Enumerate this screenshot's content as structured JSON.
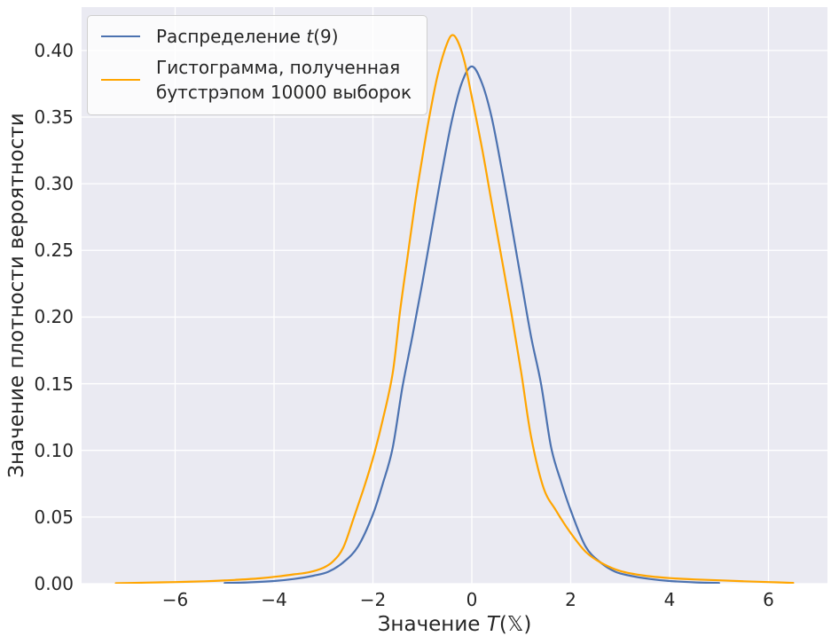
{
  "figure": {
    "background": "#ffffff",
    "plot_background": "#eaeaf2",
    "grid_color": "#ffffff",
    "text_color": "#262626"
  },
  "chart_data": {
    "type": "line",
    "title": "",
    "xlabel": "Значение T(𝕏)",
    "xlabel_parts": {
      "pre": "Значение ",
      "var": "T",
      "post": "(𝕏)"
    },
    "ylabel": "Значение плотности вероятности",
    "xlim": [
      -7.9,
      7.2
    ],
    "ylim": [
      0,
      0.4325
    ],
    "grid": true,
    "legend_position": "upper left",
    "xticks": [
      -6,
      -4,
      -2,
      0,
      2,
      4,
      6
    ],
    "xtick_labels": [
      "−6",
      "−4",
      "−2",
      "0",
      "2",
      "4",
      "6"
    ],
    "yticks": [
      0,
      0.05,
      0.1,
      0.15,
      0.2,
      0.25,
      0.3,
      0.35,
      0.4
    ],
    "ytick_labels": [
      "0.00",
      "0.05",
      "0.10",
      "0.15",
      "0.20",
      "0.25",
      "0.30",
      "0.35",
      "0.40"
    ],
    "series": [
      {
        "name": "Распределение t(9)",
        "color": "#4C72B0",
        "peak": {
          "x": 0.0,
          "y": 0.388
        },
        "x": [
          -5.0,
          -4.5,
          -4.0,
          -3.6,
          -3.2,
          -2.9,
          -2.6,
          -2.3,
          -2.0,
          -1.8,
          -1.6,
          -1.4,
          -1.2,
          -1.0,
          -0.8,
          -0.6,
          -0.4,
          -0.2,
          0.0,
          0.2,
          0.4,
          0.6,
          0.8,
          1.0,
          1.2,
          1.4,
          1.6,
          1.8,
          2.0,
          2.3,
          2.6,
          2.9,
          3.2,
          3.6,
          4.0,
          4.5,
          5.0
        ],
        "y": [
          0.0005,
          0.001,
          0.002,
          0.0035,
          0.006,
          0.009,
          0.016,
          0.028,
          0.052,
          0.075,
          0.102,
          0.148,
          0.186,
          0.226,
          0.268,
          0.31,
          0.348,
          0.376,
          0.388,
          0.376,
          0.35,
          0.312,
          0.27,
          0.227,
          0.185,
          0.15,
          0.103,
          0.077,
          0.055,
          0.028,
          0.016,
          0.009,
          0.006,
          0.0035,
          0.002,
          0.001,
          0.0005
        ]
      },
      {
        "name": "Гистограмма, полученная бутстрэпом 10000 выборок",
        "color": "#FFA500",
        "peak": {
          "x": -0.42,
          "y": 0.411
        },
        "x": [
          -7.2,
          -6.6,
          -6.0,
          -5.4,
          -4.8,
          -4.3,
          -3.9,
          -3.6,
          -3.3,
          -3.0,
          -2.8,
          -2.6,
          -2.4,
          -2.2,
          -2.0,
          -1.8,
          -1.6,
          -1.45,
          -1.3,
          -1.15,
          -1.0,
          -0.85,
          -0.7,
          -0.55,
          -0.42,
          -0.3,
          -0.15,
          0.0,
          0.2,
          0.4,
          0.6,
          0.8,
          1.0,
          1.2,
          1.45,
          1.7,
          2.0,
          2.3,
          2.6,
          3.0,
          3.5,
          4.0,
          4.5,
          5.0,
          5.5,
          6.0,
          6.5
        ],
        "y": [
          0.0003,
          0.0008,
          0.0012,
          0.0018,
          0.0028,
          0.004,
          0.0055,
          0.007,
          0.0085,
          0.012,
          0.017,
          0.027,
          0.048,
          0.07,
          0.094,
          0.123,
          0.158,
          0.205,
          0.245,
          0.285,
          0.32,
          0.352,
          0.38,
          0.4,
          0.411,
          0.408,
          0.392,
          0.365,
          0.328,
          0.286,
          0.245,
          0.203,
          0.158,
          0.11,
          0.072,
          0.055,
          0.038,
          0.024,
          0.016,
          0.0095,
          0.006,
          0.0042,
          0.0032,
          0.0025,
          0.0018,
          0.0012,
          0.0006
        ]
      }
    ]
  },
  "legend": {
    "items": [
      {
        "label": "Распределение t(9)",
        "pre": "Распределение ",
        "var": "t",
        "post": "(9)",
        "color": "#4C72B0"
      },
      {
        "label": "Гистограмма, полученная бутстрэпом 10000 выборок",
        "line1": "Гистограмма, полученная",
        "line2": "бутстрэпом 10000 выборок",
        "color": "#FFA500"
      }
    ]
  }
}
